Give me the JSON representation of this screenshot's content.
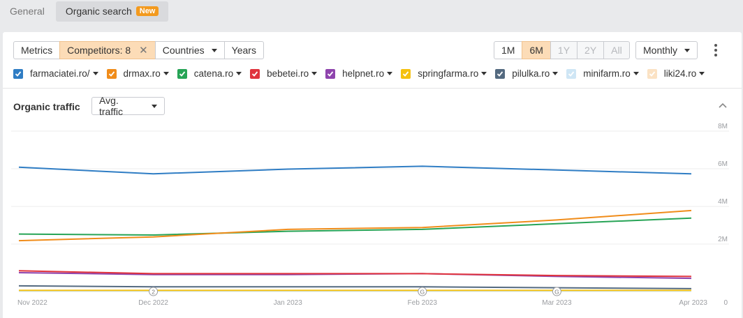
{
  "tabs": {
    "general": "General",
    "organic": "Organic search",
    "new_badge": "New"
  },
  "toolbar": {
    "metrics": "Metrics",
    "competitors": "Competitors: 8",
    "countries": "Countries",
    "years": "Years",
    "ranges": [
      "1M",
      "6M",
      "1Y",
      "2Y",
      "All"
    ],
    "selected_range": "6M",
    "disabled_ranges": [
      "1Y",
      "2Y",
      "All"
    ],
    "interval": "Monthly"
  },
  "legend": [
    {
      "label": "farmaciatei.ro/",
      "color": "#2f7dc4",
      "checked": true
    },
    {
      "label": "drmax.ro",
      "color": "#f08c1a",
      "checked": true
    },
    {
      "label": "catena.ro",
      "color": "#27a456",
      "checked": true
    },
    {
      "label": "bebetei.ro",
      "color": "#e0333d",
      "checked": true
    },
    {
      "label": "helpnet.ro",
      "color": "#8e44ad",
      "checked": true
    },
    {
      "label": "springfarma.ro",
      "color": "#f5c10f",
      "checked": true
    },
    {
      "label": "pilulka.ro",
      "color": "#546a80",
      "checked": true
    },
    {
      "label": "minifarm.ro",
      "color": "#cfe6f5",
      "checked": true
    },
    {
      "label": "liki24.ro",
      "color": "#fbe2c4",
      "checked": true
    }
  ],
  "chart_section": {
    "title": "Organic traffic",
    "metric_select": "Avg. traffic"
  },
  "chart_data": {
    "type": "line",
    "x": [
      "Nov 2022",
      "Dec 2022",
      "Jan 2023",
      "Feb 2023",
      "Mar 2023",
      "Apr 2023"
    ],
    "y_ticks": [
      "8M",
      "6M",
      "4M",
      "2M",
      "0"
    ],
    "ylim": [
      0,
      8000000
    ],
    "annotations": [
      {
        "x": "Dec 2022",
        "label": "2"
      },
      {
        "x": "Feb 2023",
        "label": "G"
      },
      {
        "x": "Mar 2023",
        "label": "G"
      }
    ],
    "series": [
      {
        "name": "farmaciatei.ro/",
        "color": "#2f7dc4",
        "values": [
          6600000,
          6250000,
          6500000,
          6650000,
          6450000,
          6250000
        ]
      },
      {
        "name": "drmax.ro",
        "color": "#f08c1a",
        "values": [
          2700000,
          2900000,
          3300000,
          3400000,
          3800000,
          4300000
        ]
      },
      {
        "name": "catena.ro",
        "color": "#27a456",
        "values": [
          3050000,
          3000000,
          3200000,
          3300000,
          3600000,
          3900000
        ]
      },
      {
        "name": "bebetei.ro",
        "color": "#e0333d",
        "values": [
          1100000,
          950000,
          950000,
          950000,
          850000,
          800000
        ]
      },
      {
        "name": "helpnet.ro",
        "color": "#8e44ad",
        "values": [
          1000000,
          900000,
          900000,
          950000,
          800000,
          700000
        ]
      },
      {
        "name": "springfarma.ro",
        "color": "#f5c10f",
        "values": [
          60000,
          60000,
          60000,
          60000,
          60000,
          60000
        ]
      },
      {
        "name": "pilulka.ro",
        "color": "#546a80",
        "values": [
          300000,
          250000,
          250000,
          250000,
          200000,
          150000
        ]
      },
      {
        "name": "minifarm.ro",
        "color": "#cfe6f5",
        "values": [
          20000,
          20000,
          20000,
          20000,
          20000,
          20000
        ]
      },
      {
        "name": "liki24.ro",
        "color": "#fbe2c4",
        "values": [
          40000,
          40000,
          40000,
          40000,
          40000,
          40000
        ]
      }
    ]
  }
}
